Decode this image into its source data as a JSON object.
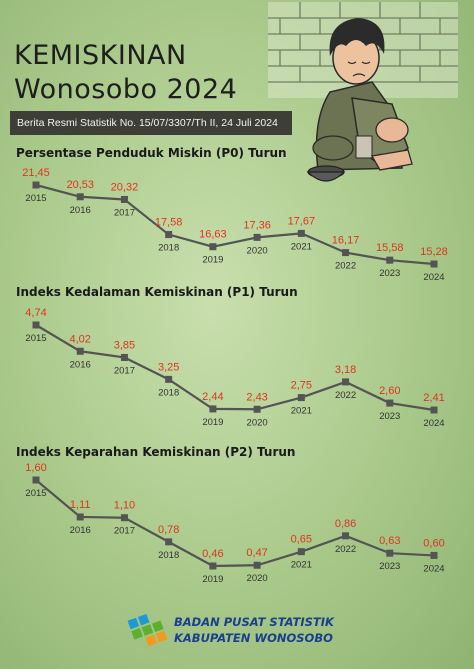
{
  "header": {
    "title_line1": "KEMISKINAN",
    "title_line2": "Wonosobo 2024",
    "subtitle": "Berita Resmi Statistik No. 15/07/3307/Th II, 24 Juli 2024"
  },
  "colors": {
    "line": "#545454",
    "value_label": "#e0341f",
    "year_label": "#333333",
    "brand_blue": "#1b3f8f",
    "brand_orange": "#f39a1d",
    "brand_green": "#5bb030"
  },
  "chart_data": [
    {
      "type": "line",
      "title": "Persentase Penduduk Miskin (P0) Turun",
      "x": [
        "2015",
        "2016",
        "2017",
        "2018",
        "2019",
        "2020",
        "2021",
        "2022",
        "2023",
        "2024"
      ],
      "values": [
        21.45,
        20.53,
        20.32,
        17.58,
        16.63,
        17.36,
        17.67,
        16.17,
        15.58,
        15.28
      ],
      "value_labels": [
        "21,45",
        "20,53",
        "20,32",
        "17,58",
        "16,63",
        "17,36",
        "17,67",
        "16,17",
        "15,58",
        "15,28"
      ]
    },
    {
      "type": "line",
      "title": "Indeks Kedalaman Kemiskinan (P1) Turun",
      "x": [
        "2015",
        "2016",
        "2017",
        "2018",
        "2019",
        "2020",
        "2021",
        "2022",
        "2023",
        "2024"
      ],
      "values": [
        4.74,
        4.02,
        3.85,
        3.25,
        2.44,
        2.43,
        2.75,
        3.18,
        2.6,
        2.41
      ],
      "value_labels": [
        "4,74",
        "4,02",
        "3,85",
        "3,25",
        "2,44",
        "2,43",
        "2,75",
        "3,18",
        "2,60",
        "2,41"
      ]
    },
    {
      "type": "line",
      "title": "Indeks Keparahan Kemiskinan (P2) Turun",
      "x": [
        "2015",
        "2016",
        "2017",
        "2018",
        "2019",
        "2020",
        "2021",
        "2022",
        "2023",
        "2024"
      ],
      "values": [
        1.6,
        1.11,
        1.1,
        0.78,
        0.46,
        0.47,
        0.65,
        0.86,
        0.63,
        0.6
      ],
      "value_labels": [
        "1,60",
        "1,11",
        "1,10",
        "0,78",
        "0,46",
        "0,47",
        "0,65",
        "0,86",
        "0,63",
        "0,60"
      ]
    }
  ],
  "footer": {
    "org_line1": "BADAN PUSAT STATISTIK",
    "org_line2": "KABUPATEN WONOSOBO"
  }
}
